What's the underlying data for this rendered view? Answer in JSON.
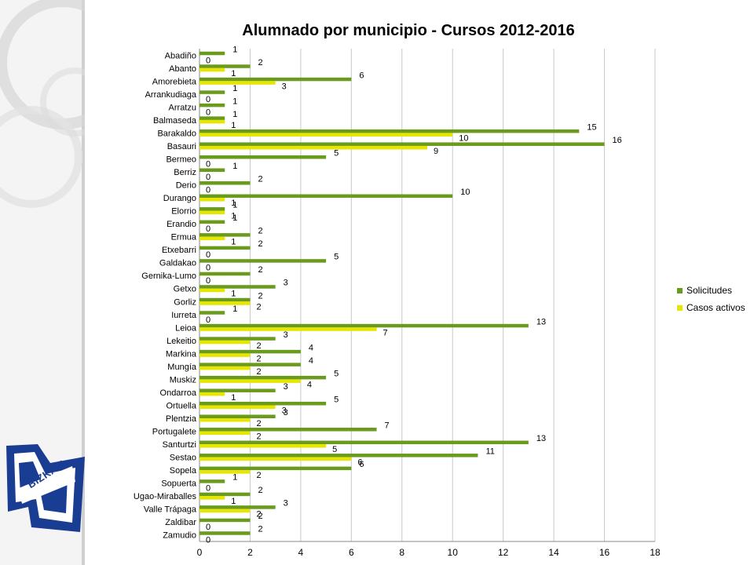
{
  "chart_data": {
    "type": "bar",
    "orientation": "horizontal",
    "title": "Alumnado por municipio - Cursos 2012-2016",
    "xlabel": "",
    "ylabel": "",
    "xlim": [
      0,
      18
    ],
    "xticks": [
      "0",
      "2",
      "4",
      "6",
      "8",
      "10",
      "12",
      "14",
      "16",
      "18"
    ],
    "grid": true,
    "legend_position": "right",
    "categories": [
      "Abadiño",
      "Abanto",
      "Amorebieta",
      "Arrankudiaga",
      "Arratzu",
      "Balmaseda",
      "Barakaldo",
      "Basauri",
      "Bermeo",
      "Berriz",
      "Derio",
      "Durango",
      "Elorrio",
      "Erandio",
      "Ermua",
      "Etxebarri",
      "Galdakao",
      "Gernika-Lumo",
      "Getxo",
      "Gorliz",
      "Iurreta",
      "Leioa",
      "Lekeitio",
      "Markina",
      "Mungía",
      "Muskiz",
      "Ondarroa",
      "Ortuella",
      "Plentzia",
      "Portugalete",
      "Santurtzi",
      "Sestao",
      "Sopela",
      "Sopuerta",
      "Ugao-Miraballes",
      "Valle Trápaga",
      "Zaldibar",
      "Zamudio"
    ],
    "series": [
      {
        "name": "Solicitudes",
        "color": "#6a9b1d",
        "values": [
          1,
          2,
          6,
          1,
          1,
          1,
          15,
          16,
          5,
          1,
          2,
          10,
          1,
          1,
          2,
          2,
          5,
          2,
          3,
          2,
          1,
          13,
          3,
          4,
          4,
          5,
          3,
          5,
          3,
          7,
          13,
          11,
          6,
          1,
          2,
          3,
          2,
          2
        ]
      },
      {
        "name": "Casos activos",
        "color": "#e6e600",
        "values": [
          0,
          1,
          3,
          0,
          0,
          1,
          10,
          9,
          0,
          0,
          0,
          1,
          1,
          0,
          1,
          0,
          0,
          0,
          1,
          2,
          0,
          7,
          2,
          2,
          2,
          4,
          1,
          3,
          2,
          2,
          5,
          6,
          2,
          0,
          1,
          2,
          0,
          0
        ]
      }
    ]
  },
  "logo": {
    "text": "BIZKAIA"
  }
}
